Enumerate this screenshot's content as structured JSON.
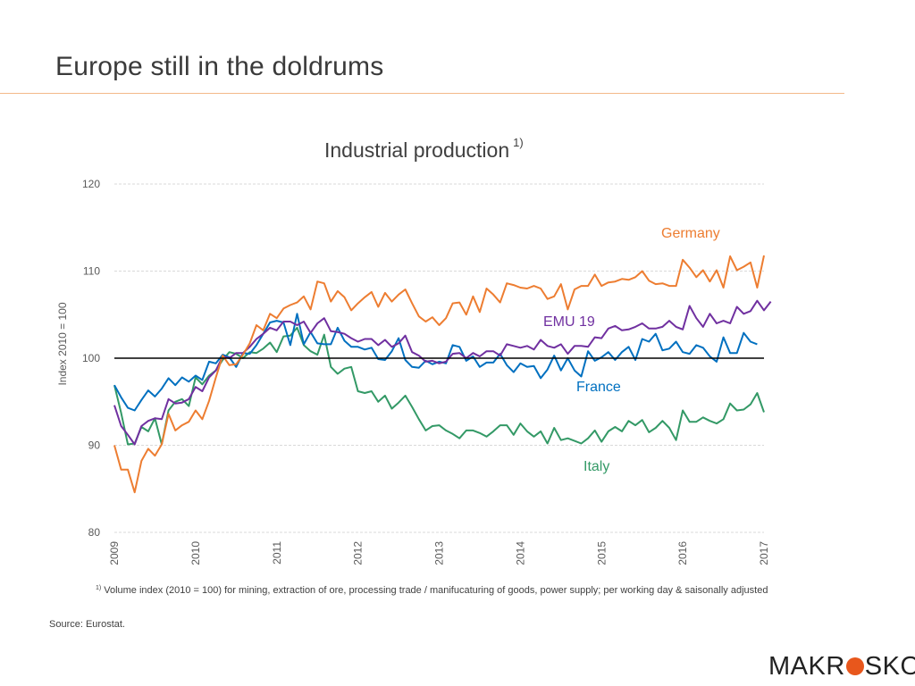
{
  "slide": {
    "title": "Europe still in the doldrums",
    "source": "Source: Eurostat.",
    "footnote_marker": "1)",
    "footnote_text": "Volume index (2010 = 100) for mining, extraction of ore, processing trade / manifucaturing of goods, power supply; per working day & saisonally adjusted",
    "logo_left": "MAKR",
    "logo_right": "SKOP"
  },
  "colors": {
    "germany": "#ed7d31",
    "emu19": "#7030a0",
    "france": "#0070c0",
    "italy": "#339966",
    "reference_line": "#000000",
    "grid": "#d9d9d9",
    "accent_rule": "#f3b98a",
    "logo_dot": "#e8571c"
  },
  "chart_data": {
    "type": "line",
    "title": "Industrial production",
    "title_marker": "1)",
    "xlabel": "",
    "ylabel": "Index 2010 = 100",
    "xlim": [
      2009,
      2017
    ],
    "ylim": [
      80,
      120
    ],
    "yticks": [
      80,
      90,
      100,
      110,
      120
    ],
    "xticks": [
      "2009",
      "2010",
      "2011",
      "2012",
      "2013",
      "2014",
      "2015",
      "2016",
      "2017"
    ],
    "reference_value": 100,
    "grid": true,
    "x_start": 2009.0,
    "x_step_years": 0.0833333,
    "series": [
      {
        "name": "Germany",
        "color": "#ed7d31",
        "values": [
          90,
          87.2,
          87.2,
          84.6,
          88.2,
          89.6,
          88.8,
          90.1,
          93.6,
          91.7,
          92.3,
          92.7,
          94.0,
          93.0,
          95.1,
          97.8,
          100.3,
          99.2,
          99.3,
          100.4,
          101.7,
          103.8,
          103.2,
          105.1,
          104.6,
          105.7,
          106.1,
          106.4,
          107.1,
          105.6,
          108.8,
          108.6,
          106.5,
          107.7,
          107.0,
          105.5,
          106.3,
          107.0,
          107.6,
          105.9,
          107.5,
          106.5,
          107.3,
          107.9,
          106.3,
          104.8,
          104.2,
          104.7,
          103.8,
          104.6,
          106.3,
          106.4,
          105.0,
          107.1,
          105.3,
          108.0,
          107.3,
          106.4,
          108.6,
          108.4,
          108.1,
          108.0,
          108.3,
          108.0,
          106.8,
          107.1,
          108.5,
          105.6,
          107.9,
          108.3,
          108.3,
          109.6,
          108.3,
          108.7,
          108.8,
          109.1,
          109.0,
          109.3,
          110.0,
          108.9,
          108.5,
          108.6,
          108.3,
          108.3,
          111.3,
          110.4,
          109.3,
          110.1,
          108.8,
          110.1,
          108.1,
          111.7,
          110.1,
          110.5,
          111.0,
          108.1,
          111.8
        ]
      },
      {
        "name": "EMU 19",
        "color": "#7030a0",
        "values": [
          94.6,
          92.2,
          91.2,
          90.1,
          92.2,
          92.8,
          93.1,
          93.0,
          95.3,
          94.8,
          94.9,
          95.3,
          96.7,
          96.2,
          97.8,
          98.6,
          100.2,
          100.0,
          100.6,
          100.6,
          101.3,
          102.2,
          102.8,
          103.5,
          103.2,
          104.2,
          104.2,
          103.8,
          104.2,
          102.9,
          104.0,
          104.6,
          103.1,
          103.0,
          102.8,
          102.3,
          101.9,
          102.2,
          102.2,
          101.5,
          102.1,
          101.3,
          101.7,
          102.6,
          100.7,
          100.3,
          99.6,
          99.7,
          99.4,
          99.6,
          100.5,
          100.6,
          100.0,
          100.6,
          100.2,
          100.8,
          100.8,
          100.3,
          101.6,
          101.4,
          101.2,
          101.4,
          101.0,
          102.1,
          101.4,
          101.2,
          101.6,
          100.5,
          101.4,
          101.4,
          101.3,
          102.4,
          102.3,
          103.4,
          103.7,
          103.2,
          103.3,
          103.6,
          104.0,
          103.4,
          103.4,
          103.6,
          104.3,
          103.6,
          103.3,
          106.0,
          104.6,
          103.6,
          105.1,
          104.0,
          104.3,
          104.0,
          105.9,
          105.1,
          105.4,
          106.6,
          105.5,
          106.5
        ]
      },
      {
        "name": "France",
        "color": "#0070c0",
        "values": [
          96.9,
          95.5,
          94.3,
          94.0,
          95.2,
          96.3,
          95.6,
          96.5,
          97.7,
          96.9,
          97.8,
          97.3,
          98.0,
          97.5,
          99.6,
          99.4,
          100.4,
          100.1,
          99.0,
          100.6,
          100.5,
          101.5,
          102.8,
          104.1,
          104.3,
          104.1,
          101.5,
          105.1,
          101.6,
          103.0,
          101.7,
          101.6,
          101.6,
          103.5,
          102.0,
          101.3,
          101.3,
          101.0,
          101.2,
          99.9,
          99.8,
          100.8,
          102.3,
          99.8,
          99.0,
          98.9,
          99.7,
          99.3,
          99.6,
          99.4,
          101.5,
          101.3,
          99.7,
          100.2,
          99.0,
          99.5,
          99.5,
          100.5,
          99.2,
          98.4,
          99.4,
          99.0,
          99.1,
          97.7,
          98.7,
          100.3,
          98.6,
          100.0,
          98.6,
          97.9,
          100.8,
          99.7,
          100.1,
          100.7,
          99.8,
          100.7,
          101.3,
          99.8,
          102.2,
          101.9,
          102.8,
          100.9,
          101.1,
          101.9,
          100.7,
          100.5,
          101.5,
          101.2,
          100.2,
          99.6,
          102.4,
          100.6,
          100.6,
          102.9,
          101.9,
          101.6
        ]
      },
      {
        "name": "Italy",
        "color": "#339966",
        "values": [
          96.9,
          93.7,
          90.1,
          90.2,
          92.1,
          91.6,
          93.1,
          90.1,
          94.0,
          95.0,
          95.3,
          94.5,
          97.8,
          97.0,
          98.0,
          98.6,
          99.8,
          100.7,
          100.5,
          100.0,
          100.7,
          100.6,
          101.1,
          101.8,
          100.7,
          102.5,
          102.6,
          103.5,
          101.5,
          100.8,
          100.4,
          102.7,
          99.0,
          98.2,
          98.8,
          99.0,
          96.2,
          96.0,
          96.2,
          95.0,
          95.7,
          94.2,
          94.9,
          95.7,
          94.4,
          93.0,
          91.7,
          92.2,
          92.3,
          91.7,
          91.3,
          90.8,
          91.7,
          91.7,
          91.4,
          91.0,
          91.6,
          92.3,
          92.3,
          91.2,
          92.5,
          91.6,
          91.0,
          91.6,
          90.2,
          92.0,
          90.6,
          90.8,
          90.5,
          90.2,
          90.8,
          91.7,
          90.4,
          91.6,
          92.1,
          91.6,
          92.8,
          92.3,
          92.9,
          91.5,
          92.0,
          92.8,
          92.0,
          90.6,
          94.0,
          92.7,
          92.7,
          93.2,
          92.8,
          92.5,
          93.0,
          94.8,
          94.0,
          94.1,
          94.7,
          96.0,
          93.8
        ]
      }
    ],
    "series_labels": {
      "germany": "Germany",
      "emu19": "EMU 19",
      "france": "France",
      "italy": "Italy"
    }
  }
}
